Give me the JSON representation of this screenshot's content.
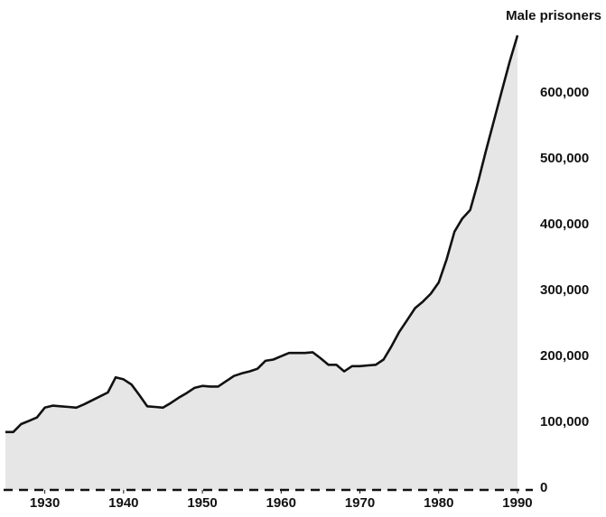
{
  "chart_data": {
    "type": "area",
    "title": "Male prisoners",
    "x": [
      1925,
      1926,
      1927,
      1928,
      1929,
      1930,
      1931,
      1932,
      1933,
      1934,
      1935,
      1936,
      1937,
      1938,
      1939,
      1940,
      1941,
      1942,
      1943,
      1944,
      1945,
      1946,
      1947,
      1948,
      1949,
      1950,
      1951,
      1952,
      1953,
      1954,
      1955,
      1956,
      1957,
      1958,
      1959,
      1960,
      1961,
      1962,
      1963,
      1964,
      1965,
      1966,
      1967,
      1968,
      1969,
      1970,
      1971,
      1972,
      1973,
      1974,
      1975,
      1976,
      1977,
      1978,
      1979,
      1980,
      1981,
      1982,
      1983,
      1984,
      1985,
      1986,
      1987,
      1988,
      1989,
      1990
    ],
    "series": [
      {
        "name": "Male prisoners",
        "color": "#111111",
        "fill": "#e6e6e6",
        "values": [
          88000,
          88000,
          100000,
          105000,
          110000,
          125000,
          128000,
          127000,
          126000,
          125000,
          130000,
          136000,
          142000,
          148000,
          171000,
          168000,
          160000,
          144000,
          127000,
          126000,
          125000,
          132000,
          140000,
          147000,
          155000,
          158000,
          157000,
          157000,
          165000,
          173000,
          177000,
          180000,
          184000,
          196000,
          198000,
          203000,
          208000,
          208000,
          208000,
          209000,
          200000,
          190000,
          190000,
          180000,
          188000,
          188000,
          189000,
          190000,
          198000,
          218000,
          240000,
          258000,
          276000,
          286000,
          298000,
          315000,
          350000,
          392000,
          412000,
          425000,
          468000,
          515000,
          560000,
          605000,
          650000,
          690000
        ]
      }
    ],
    "xlim": [
      1925,
      1991
    ],
    "xticks": [
      1930,
      1940,
      1950,
      1960,
      1970,
      1980,
      1990
    ],
    "ylim": [
      0,
      700000
    ],
    "yticks": [
      0,
      {
        "value": 100000,
        "label": "100,000"
      },
      {
        "value": 200000,
        "label": "200,000"
      },
      {
        "value": 300000,
        "label": "300,000"
      },
      {
        "value": 400000,
        "label": "400,000"
      },
      {
        "value": 500000,
        "label": "500,000"
      },
      {
        "value": 600000,
        "label": "600,000"
      }
    ]
  }
}
